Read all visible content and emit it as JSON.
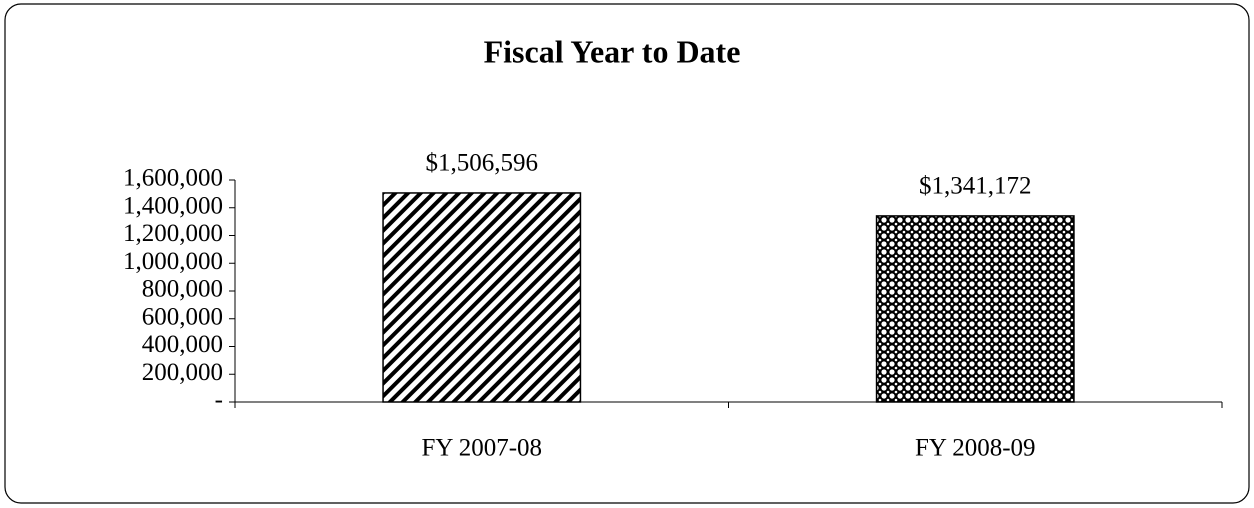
{
  "chart_data": {
    "type": "bar",
    "title": "Fiscal Year to Date",
    "categories": [
      "FY 2007-08",
      "FY 2008-09"
    ],
    "values": [
      1506596,
      1341172
    ],
    "value_labels": [
      "$1,506,596",
      "$1,341,172"
    ],
    "bar_patterns": [
      "hatch",
      "dots"
    ],
    "color": "#000000",
    "ylim": [
      0,
      1600000
    ],
    "yticks": [
      {
        "value": 0,
        "label": "-"
      },
      {
        "value": 200000,
        "label": "200,000"
      },
      {
        "value": 400000,
        "label": "400,000"
      },
      {
        "value": 600000,
        "label": "600,000"
      },
      {
        "value": 800000,
        "label": "800,000"
      },
      {
        "value": 1000000,
        "label": "1,000,000"
      },
      {
        "value": 1200000,
        "label": "1,200,000"
      },
      {
        "value": 1400000,
        "label": "1,400,000"
      },
      {
        "value": 1600000,
        "label": "1,600,000"
      }
    ],
    "grid": false
  }
}
